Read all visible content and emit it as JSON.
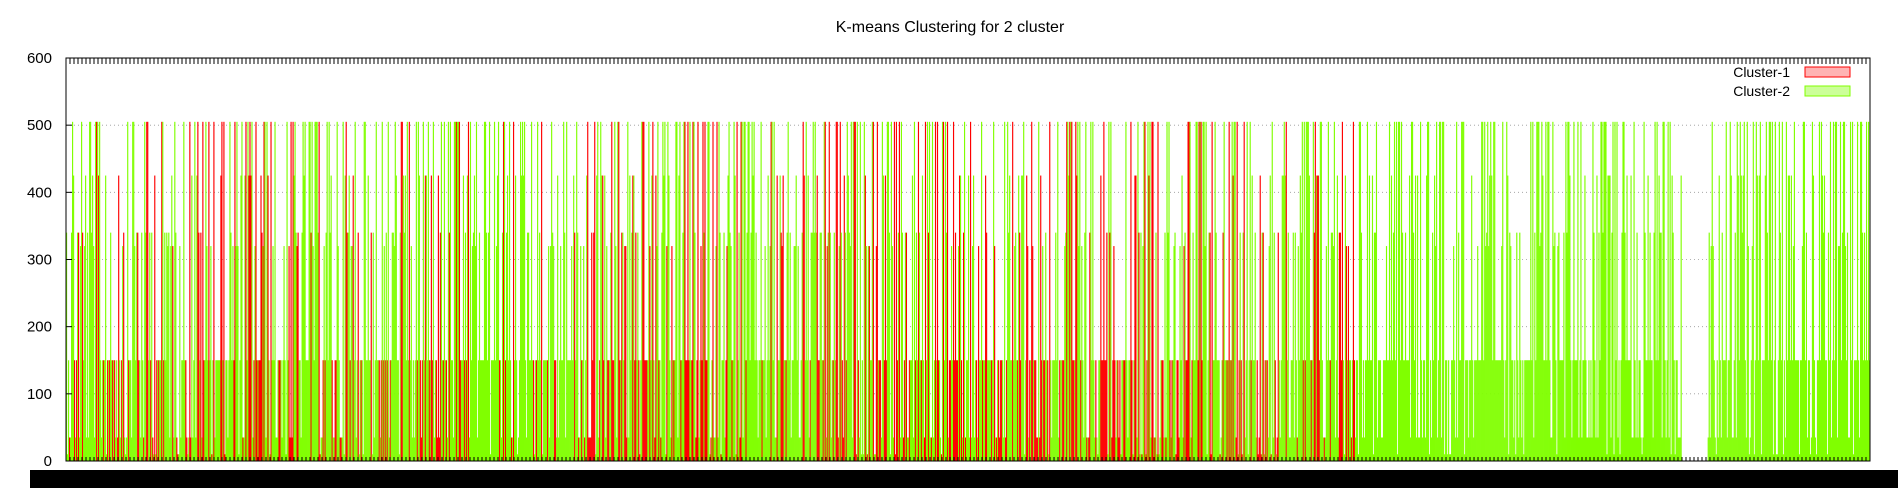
{
  "chart_data": {
    "type": "bar",
    "title": "K-means Clustering for 2 cluster",
    "xlabel": "",
    "ylabel": "",
    "ylim": [
      0,
      600
    ],
    "yticks": [
      0,
      100,
      200,
      300,
      400,
      500,
      600
    ],
    "grid": "horizontal dotted",
    "legend_position": "top-right",
    "x_count": 1800,
    "cluster1_fraction_by_segment": [
      0.3,
      0.35,
      0.32,
      0.12,
      0.45,
      0.28,
      0.38,
      0.36,
      0.42,
      0.4,
      0.0,
      0.0,
      0.0,
      0.0
    ],
    "value_levels": [
      505,
      425,
      340,
      320,
      150,
      35,
      10
    ],
    "series": [
      {
        "name": "Cluster-1",
        "color": "#ff0000",
        "fill": "#ffb3b3"
      },
      {
        "name": "Cluster-2",
        "color": "#80ff00",
        "fill": "#ccff99"
      }
    ]
  }
}
